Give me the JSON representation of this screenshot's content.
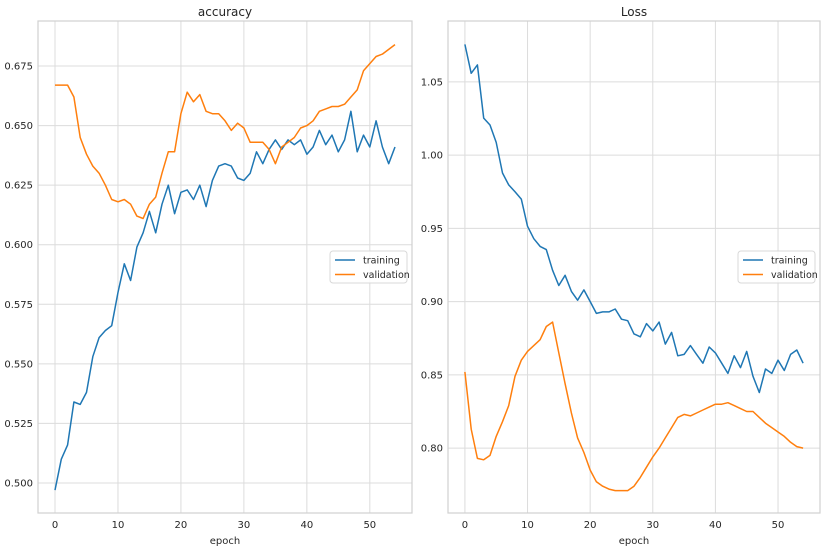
{
  "chart_data": [
    {
      "type": "line",
      "title": "accuracy",
      "xlabel": "epoch",
      "ylabel": "",
      "xlim": [
        -2.7,
        56.7
      ],
      "ylim": [
        0.4874,
        0.6939
      ],
      "xticks": [
        0,
        10,
        20,
        30,
        40,
        50
      ],
      "yticks": [
        0.5,
        0.525,
        0.55,
        0.575,
        0.6,
        0.625,
        0.65,
        0.675
      ],
      "ytick_decimals": 3,
      "grid": true,
      "legend_position": "center-right",
      "x": "0..54",
      "series": [
        {
          "name": "training",
          "color": "#1f77b4",
          "values": [
            0.497,
            0.51,
            0.516,
            0.534,
            0.533,
            0.538,
            0.553,
            0.561,
            0.564,
            0.566,
            0.58,
            0.592,
            0.585,
            0.599,
            0.605,
            0.614,
            0.605,
            0.617,
            0.625,
            0.613,
            0.622,
            0.623,
            0.619,
            0.625,
            0.616,
            0.627,
            0.633,
            0.634,
            0.633,
            0.628,
            0.627,
            0.63,
            0.639,
            0.634,
            0.64,
            0.644,
            0.64,
            0.644,
            0.642,
            0.644,
            0.638,
            0.641,
            0.648,
            0.642,
            0.646,
            0.639,
            0.644,
            0.656,
            0.639,
            0.646,
            0.641,
            0.652,
            0.641,
            0.634,
            0.641
          ]
        },
        {
          "name": "validation",
          "color": "#ff7f0e",
          "values": [
            0.667,
            0.667,
            0.667,
            0.662,
            0.645,
            0.638,
            0.633,
            0.63,
            0.625,
            0.619,
            0.618,
            0.619,
            0.617,
            0.612,
            0.611,
            0.617,
            0.62,
            0.63,
            0.639,
            0.639,
            0.655,
            0.664,
            0.66,
            0.663,
            0.656,
            0.655,
            0.655,
            0.652,
            0.648,
            0.651,
            0.649,
            0.643,
            0.643,
            0.643,
            0.64,
            0.634,
            0.641,
            0.643,
            0.645,
            0.649,
            0.65,
            0.652,
            0.656,
            0.657,
            0.658,
            0.658,
            0.659,
            0.662,
            0.665,
            0.673,
            0.676,
            0.679,
            0.68,
            0.682,
            0.684
          ]
        }
      ]
    },
    {
      "type": "line",
      "title": "Loss",
      "xlabel": "epoch",
      "ylabel": "",
      "xlim": [
        -2.7,
        56.7
      ],
      "ylim": [
        0.7557,
        1.0916
      ],
      "xticks": [
        0,
        10,
        20,
        30,
        40,
        50
      ],
      "yticks": [
        0.8,
        0.85,
        0.9,
        0.95,
        1.0,
        1.05
      ],
      "ytick_decimals": 2,
      "grid": true,
      "legend_position": "center-right",
      "x": "0..54",
      "series": [
        {
          "name": "training",
          "color": "#1f77b4",
          "values": [
            1.0756,
            1.0559,
            1.0616,
            1.0253,
            1.0206,
            1.0087,
            0.9878,
            0.9797,
            0.975,
            0.97,
            0.9515,
            0.943,
            0.9377,
            0.9355,
            0.9214,
            0.911,
            0.918,
            0.907,
            0.901,
            0.908,
            0.9,
            0.892,
            0.893,
            0.893,
            0.895,
            0.888,
            0.887,
            0.878,
            0.876,
            0.885,
            0.88,
            0.886,
            0.871,
            0.879,
            0.863,
            0.864,
            0.87,
            0.864,
            0.858,
            0.869,
            0.865,
            0.858,
            0.851,
            0.863,
            0.855,
            0.866,
            0.849,
            0.838,
            0.854,
            0.851,
            0.86,
            0.853,
            0.864,
            0.867,
            0.858
          ]
        },
        {
          "name": "validation",
          "color": "#ff7f0e",
          "values": [
            0.852,
            0.813,
            0.793,
            0.792,
            0.795,
            0.808,
            0.818,
            0.829,
            0.849,
            0.86,
            0.866,
            0.87,
            0.874,
            0.883,
            0.886,
            0.865,
            0.844,
            0.824,
            0.807,
            0.797,
            0.785,
            0.777,
            0.774,
            0.772,
            0.771,
            0.771,
            0.771,
            0.774,
            0.78,
            0.787,
            0.794,
            0.8,
            0.807,
            0.814,
            0.821,
            0.823,
            0.822,
            0.824,
            0.826,
            0.828,
            0.83,
            0.83,
            0.831,
            0.829,
            0.827,
            0.825,
            0.825,
            0.821,
            0.817,
            0.814,
            0.811,
            0.808,
            0.804,
            0.801,
            0.8
          ]
        }
      ]
    }
  ]
}
